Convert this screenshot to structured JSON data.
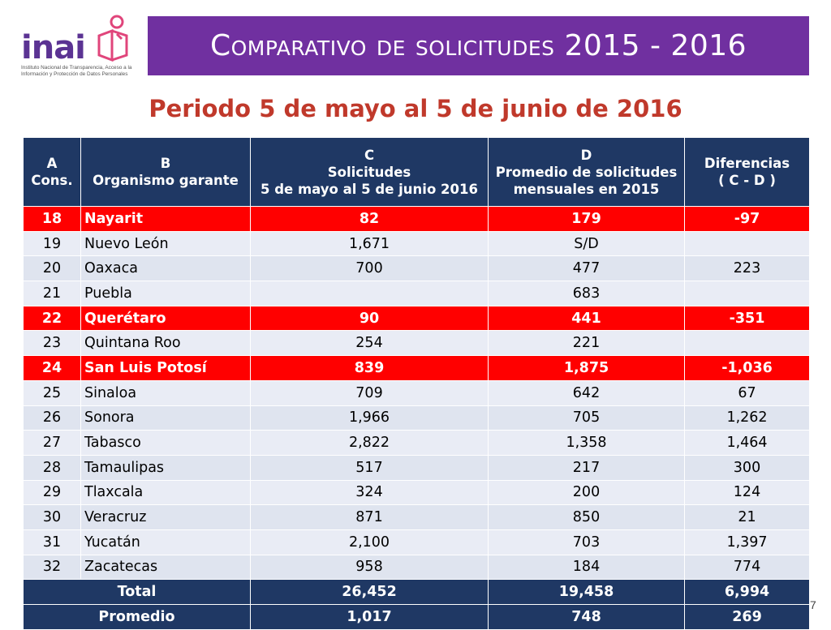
{
  "logo": {
    "wordmark": "inai",
    "subtitle_line1": "Instituto Nacional de Transparencia, Acceso a la",
    "subtitle_line2": "Información y Protección de Datos Personales"
  },
  "header": {
    "title": "Comparativo de solicitudes 2015 - 2016"
  },
  "subtitle": "Periodo 5 de mayo al 5 de junio de 2016",
  "table": {
    "headers": {
      "a_line1": "A",
      "a_line2": "Cons.",
      "b_line1": "B",
      "b_line2": "Organismo garante",
      "c_line1": "C",
      "c_line2": "Solicitudes",
      "c_line3": "5 de mayo al 5 de junio 2016",
      "d_line1": "D",
      "d_line2": "Promedio de solicitudes",
      "d_line3": "mensuales en 2015",
      "e_line1": "Diferencias",
      "e_line2": "( C - D )"
    },
    "rows": [
      {
        "cons": "18",
        "org": "Nayarit",
        "c": "82",
        "d": "179",
        "diff": "-97",
        "highlight": true
      },
      {
        "cons": "19",
        "org": "Nuevo León",
        "c": "1,671",
        "d": "S/D",
        "diff": "",
        "highlight": false
      },
      {
        "cons": "20",
        "org": "Oaxaca",
        "c": "700",
        "d": "477",
        "diff": "223",
        "highlight": false
      },
      {
        "cons": "21",
        "org": "Puebla",
        "c": "",
        "d": "683",
        "diff": "",
        "highlight": false
      },
      {
        "cons": "22",
        "org": "Querétaro",
        "c": "90",
        "d": "441",
        "diff": "-351",
        "highlight": true
      },
      {
        "cons": "23",
        "org": "Quintana Roo",
        "c": "254",
        "d": "221",
        "diff": "",
        "highlight": false
      },
      {
        "cons": "24",
        "org": "San Luis Potosí",
        "c": "839",
        "d": "1,875",
        "diff": "-1,036",
        "highlight": true
      },
      {
        "cons": "25",
        "org": "Sinaloa",
        "c": "709",
        "d": "642",
        "diff": "67",
        "highlight": false
      },
      {
        "cons": "26",
        "org": "Sonora",
        "c": "1,966",
        "d": "705",
        "diff": "1,262",
        "highlight": false
      },
      {
        "cons": "27",
        "org": "Tabasco",
        "c": "2,822",
        "d": "1,358",
        "diff": "1,464",
        "highlight": false
      },
      {
        "cons": "28",
        "org": "Tamaulipas",
        "c": "517",
        "d": "217",
        "diff": "300",
        "highlight": false
      },
      {
        "cons": "29",
        "org": "Tlaxcala",
        "c": "324",
        "d": "200",
        "diff": "124",
        "highlight": false
      },
      {
        "cons": "30",
        "org": "Veracruz",
        "c": "871",
        "d": "850",
        "diff": "21",
        "highlight": false
      },
      {
        "cons": "31",
        "org": "Yucatán",
        "c": "2,100",
        "d": "703",
        "diff": "1,397",
        "highlight": false
      },
      {
        "cons": "32",
        "org": "Zacatecas",
        "c": "958",
        "d": "184",
        "diff": "774",
        "highlight": false
      }
    ],
    "totals": [
      {
        "label": "Total",
        "c": "26,452",
        "d": "19,458",
        "diff": "6,994"
      },
      {
        "label": "Promedio",
        "c": "1,017",
        "d": "748",
        "diff": "269"
      }
    ]
  },
  "page_number": "7",
  "colors": {
    "banner": "#7030a0",
    "header": "#1f3864",
    "highlight": "#ff0000",
    "subtitle": "#c0392b"
  }
}
